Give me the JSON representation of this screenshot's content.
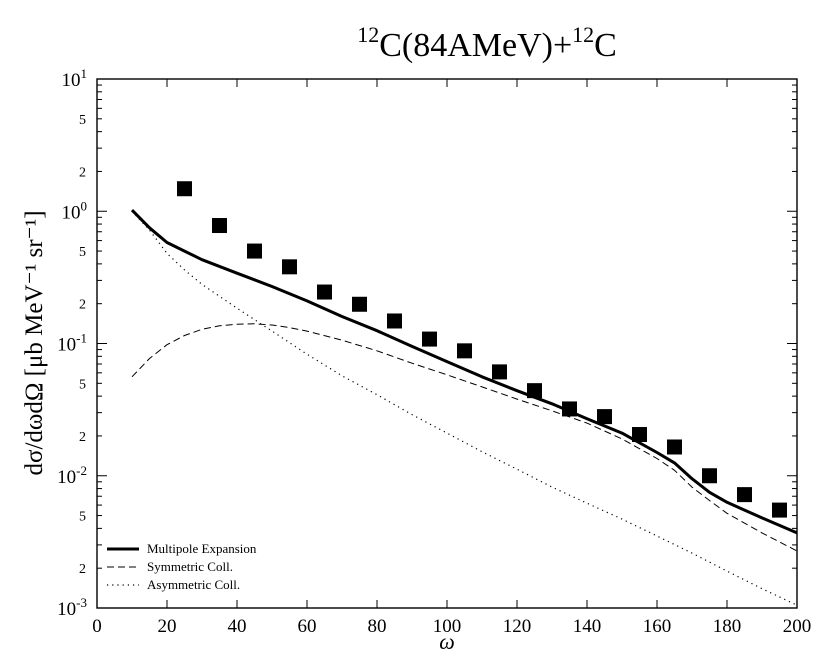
{
  "chart_data": {
    "type": "line",
    "title_parts": {
      "projectile_mass": "12",
      "projectile": "C(84AMeV)+",
      "target_mass": "12",
      "target": "C"
    },
    "xlabel": "ω",
    "ylabel": "dσ/dωdΩ  [μb MeV⁻¹ sr⁻¹]",
    "x_scale": "linear",
    "y_scale": "log",
    "xlim": [
      0,
      200
    ],
    "ylim": [
      0.001,
      10
    ],
    "x_ticks": [
      0,
      20,
      40,
      60,
      80,
      100,
      120,
      140,
      160,
      180,
      200
    ],
    "y_major_ticks": [
      {
        "value": 10,
        "base": "10",
        "exp": "1"
      },
      {
        "value": 1,
        "base": "10",
        "exp": "0"
      },
      {
        "value": 0.1,
        "base": "10",
        "exp": "-1"
      },
      {
        "value": 0.01,
        "base": "10",
        "exp": "-2"
      },
      {
        "value": 0.001,
        "base": "10",
        "exp": "-3"
      }
    ],
    "y_minor_labels": [
      {
        "value": 5,
        "label": "5"
      },
      {
        "value": 2,
        "label": "2"
      },
      {
        "value": 0.5,
        "label": "5"
      },
      {
        "value": 0.2,
        "label": "2"
      },
      {
        "value": 0.05,
        "label": "5"
      },
      {
        "value": 0.02,
        "label": "2"
      },
      {
        "value": 0.005,
        "label": "5"
      },
      {
        "value": 0.002,
        "label": "2"
      }
    ],
    "grid": false,
    "legend_position": "bottom-left",
    "series": [
      {
        "name": "Multipole Expansion",
        "style": "solid-thick",
        "x": [
          10,
          15,
          20,
          25,
          30,
          40,
          50,
          60,
          70,
          80,
          90,
          100,
          110,
          120,
          130,
          140,
          150,
          160,
          165,
          170,
          175,
          180,
          190,
          200
        ],
        "y": [
          1.02,
          0.75,
          0.58,
          0.5,
          0.43,
          0.34,
          0.27,
          0.21,
          0.16,
          0.125,
          0.095,
          0.073,
          0.056,
          0.044,
          0.035,
          0.027,
          0.021,
          0.015,
          0.0125,
          0.0095,
          0.0075,
          0.0063,
          0.0048,
          0.0037
        ]
      },
      {
        "name": "Symmetric Coll.",
        "style": "dashed",
        "x": [
          10,
          15,
          20,
          25,
          30,
          35,
          40,
          45,
          50,
          55,
          60,
          70,
          80,
          90,
          100,
          110,
          120,
          130,
          140,
          150,
          160,
          165,
          170,
          175,
          180,
          190,
          200
        ],
        "y": [
          0.056,
          0.077,
          0.098,
          0.115,
          0.128,
          0.136,
          0.14,
          0.141,
          0.138,
          0.132,
          0.124,
          0.106,
          0.088,
          0.071,
          0.058,
          0.047,
          0.038,
          0.031,
          0.025,
          0.019,
          0.0135,
          0.011,
          0.0082,
          0.0065,
          0.0052,
          0.0037,
          0.0027
        ]
      },
      {
        "name": "Asymmetric Coll.",
        "style": "dotted",
        "x": [
          10,
          15,
          20,
          25,
          30,
          40,
          50,
          60,
          70,
          80,
          90,
          100,
          110,
          120,
          130,
          140,
          150,
          160,
          170,
          180,
          190,
          200
        ],
        "y": [
          1.0,
          0.72,
          0.48,
          0.36,
          0.28,
          0.185,
          0.124,
          0.083,
          0.057,
          0.041,
          0.029,
          0.021,
          0.0152,
          0.0112,
          0.0082,
          0.0062,
          0.0047,
          0.0035,
          0.0026,
          0.0019,
          0.0014,
          0.00105
        ]
      }
    ],
    "data_points": {
      "marker": "filled-square",
      "x": [
        25,
        35,
        45,
        55,
        65,
        75,
        85,
        95,
        105,
        115,
        125,
        135,
        145,
        155,
        165,
        175,
        185,
        195
      ],
      "y": [
        1.48,
        0.78,
        0.5,
        0.38,
        0.245,
        0.198,
        0.148,
        0.108,
        0.088,
        0.061,
        0.044,
        0.032,
        0.028,
        0.0205,
        0.0165,
        0.01,
        0.0072,
        0.0055
      ]
    }
  }
}
